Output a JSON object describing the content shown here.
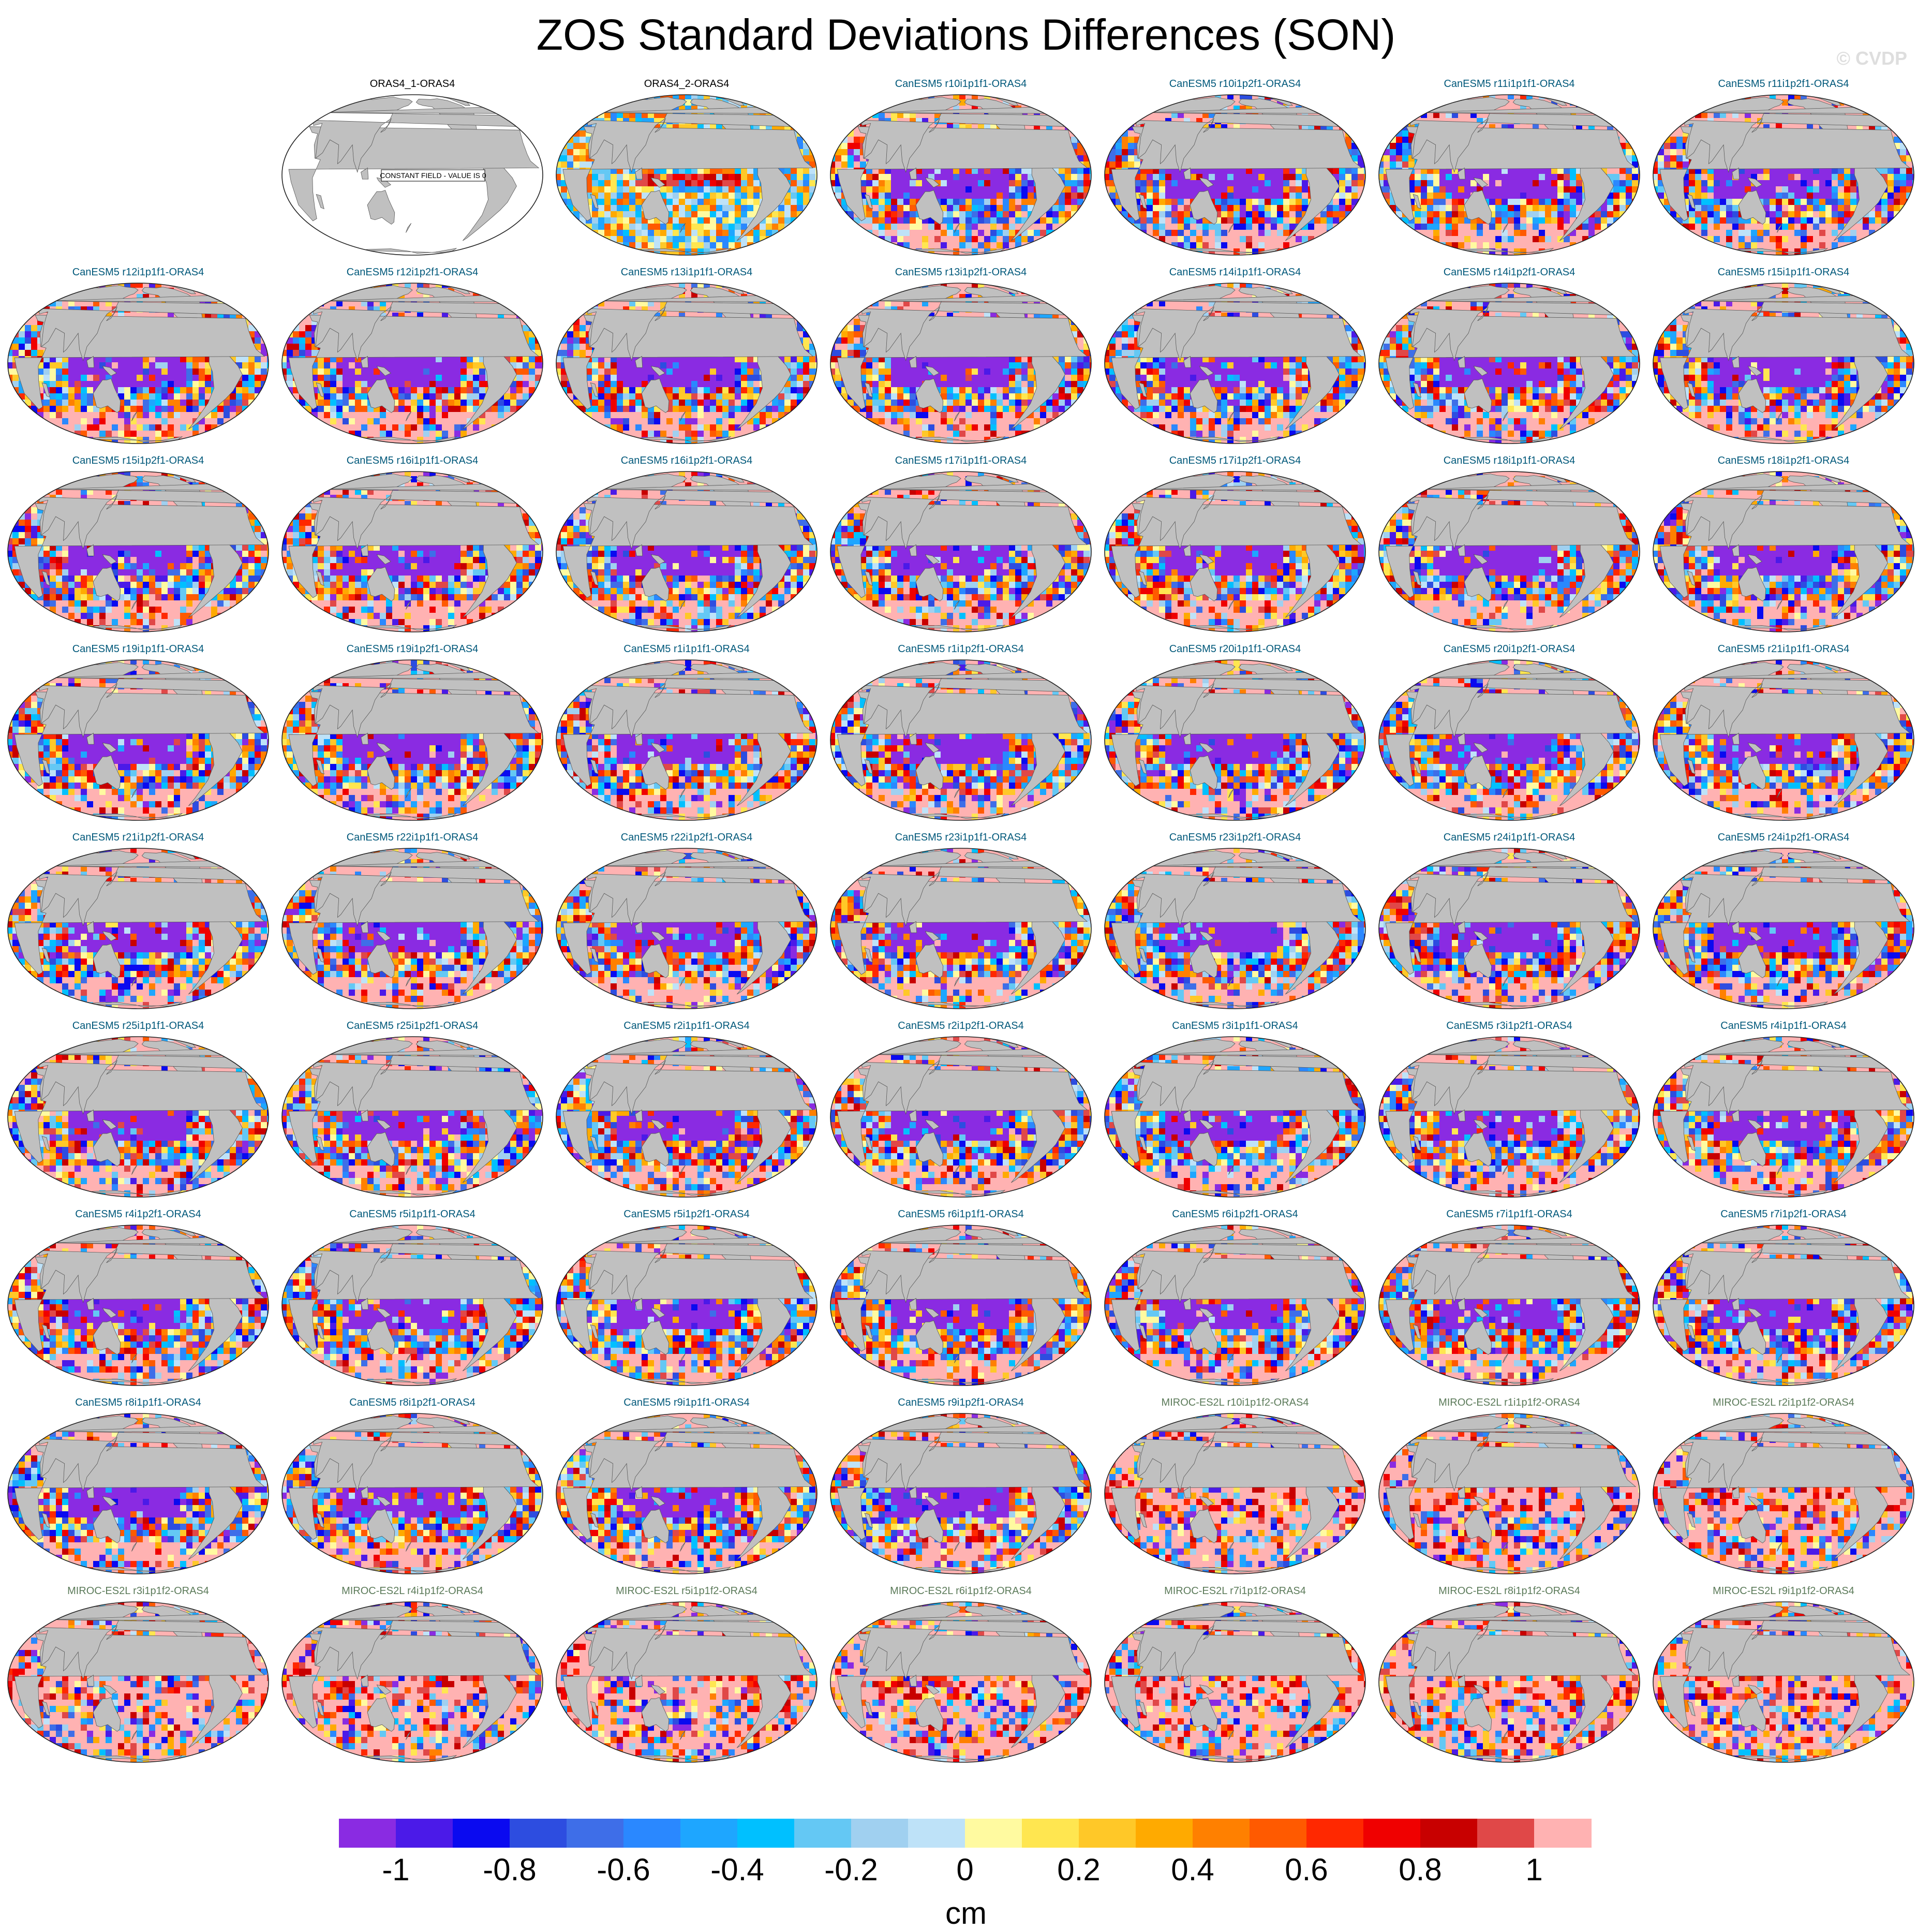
{
  "title": "ZOS Standard Deviations Differences (SON)",
  "watermark": "© CVDP",
  "colors": {
    "land": "#c0c0c0",
    "ocean_panel_one": "#ffffff",
    "colorbar": [
      "#8a2be2",
      "#4b1ae8",
      "#0a0af0",
      "#2d4de0",
      "#3e6ee8",
      "#2a88ff",
      "#1ea6ff",
      "#00c0ff",
      "#64c8f4",
      "#a0d0f0",
      "#bee2f8",
      "#fffaa0",
      "#ffe650",
      "#ffc828",
      "#ffaa00",
      "#ff8000",
      "#ff5a00",
      "#ff2800",
      "#f00000",
      "#c80000",
      "#e04848",
      "#ffb2b2"
    ]
  },
  "panels": [
    {
      "title": "ORAS4_1-ORAS4",
      "group": "obs",
      "annotation": "CONSTANT FIELD - VALUE IS 0"
    },
    {
      "title": "ORAS4_2-ORAS4",
      "group": "obs"
    },
    {
      "title": "CanESM5 r10i1p1f1-ORAS4",
      "group": "canesm"
    },
    {
      "title": "CanESM5 r10i1p2f1-ORAS4",
      "group": "canesm"
    },
    {
      "title": "CanESM5 r11i1p1f1-ORAS4",
      "group": "canesm"
    },
    {
      "title": "CanESM5 r11i1p2f1-ORAS4",
      "group": "canesm"
    },
    {
      "title": "CanESM5 r12i1p1f1-ORAS4",
      "group": "canesm"
    },
    {
      "title": "CanESM5 r12i1p2f1-ORAS4",
      "group": "canesm"
    },
    {
      "title": "CanESM5 r13i1p1f1-ORAS4",
      "group": "canesm"
    },
    {
      "title": "CanESM5 r13i1p2f1-ORAS4",
      "group": "canesm"
    },
    {
      "title": "CanESM5 r14i1p1f1-ORAS4",
      "group": "canesm"
    },
    {
      "title": "CanESM5 r14i1p2f1-ORAS4",
      "group": "canesm"
    },
    {
      "title": "CanESM5 r15i1p1f1-ORAS4",
      "group": "canesm"
    },
    {
      "title": "CanESM5 r15i1p2f1-ORAS4",
      "group": "canesm"
    },
    {
      "title": "CanESM5 r16i1p1f1-ORAS4",
      "group": "canesm"
    },
    {
      "title": "CanESM5 r16i1p2f1-ORAS4",
      "group": "canesm"
    },
    {
      "title": "CanESM5 r17i1p1f1-ORAS4",
      "group": "canesm"
    },
    {
      "title": "CanESM5 r17i1p2f1-ORAS4",
      "group": "canesm"
    },
    {
      "title": "CanESM5 r18i1p1f1-ORAS4",
      "group": "canesm"
    },
    {
      "title": "CanESM5 r18i1p2f1-ORAS4",
      "group": "canesm"
    },
    {
      "title": "CanESM5 r19i1p1f1-ORAS4",
      "group": "canesm"
    },
    {
      "title": "CanESM5 r19i1p2f1-ORAS4",
      "group": "canesm"
    },
    {
      "title": "CanESM5 r1i1p1f1-ORAS4",
      "group": "canesm"
    },
    {
      "title": "CanESM5 r1i1p2f1-ORAS4",
      "group": "canesm"
    },
    {
      "title": "CanESM5 r20i1p1f1-ORAS4",
      "group": "canesm"
    },
    {
      "title": "CanESM5 r20i1p2f1-ORAS4",
      "group": "canesm"
    },
    {
      "title": "CanESM5 r21i1p1f1-ORAS4",
      "group": "canesm"
    },
    {
      "title": "CanESM5 r21i1p2f1-ORAS4",
      "group": "canesm"
    },
    {
      "title": "CanESM5 r22i1p1f1-ORAS4",
      "group": "canesm"
    },
    {
      "title": "CanESM5 r22i1p2f1-ORAS4",
      "group": "canesm"
    },
    {
      "title": "CanESM5 r23i1p1f1-ORAS4",
      "group": "canesm"
    },
    {
      "title": "CanESM5 r23i1p2f1-ORAS4",
      "group": "canesm"
    },
    {
      "title": "CanESM5 r24i1p1f1-ORAS4",
      "group": "canesm"
    },
    {
      "title": "CanESM5 r24i1p2f1-ORAS4",
      "group": "canesm"
    },
    {
      "title": "CanESM5 r25i1p1f1-ORAS4",
      "group": "canesm"
    },
    {
      "title": "CanESM5 r25i1p2f1-ORAS4",
      "group": "canesm"
    },
    {
      "title": "CanESM5 r2i1p1f1-ORAS4",
      "group": "canesm"
    },
    {
      "title": "CanESM5 r2i1p2f1-ORAS4",
      "group": "canesm"
    },
    {
      "title": "CanESM5 r3i1p1f1-ORAS4",
      "group": "canesm"
    },
    {
      "title": "CanESM5 r3i1p2f1-ORAS4",
      "group": "canesm"
    },
    {
      "title": "CanESM5 r4i1p1f1-ORAS4",
      "group": "canesm"
    },
    {
      "title": "CanESM5 r4i1p2f1-ORAS4",
      "group": "canesm"
    },
    {
      "title": "CanESM5 r5i1p1f1-ORAS4",
      "group": "canesm"
    },
    {
      "title": "CanESM5 r5i1p2f1-ORAS4",
      "group": "canesm"
    },
    {
      "title": "CanESM5 r6i1p1f1-ORAS4",
      "group": "canesm"
    },
    {
      "title": "CanESM5 r6i1p2f1-ORAS4",
      "group": "canesm"
    },
    {
      "title": "CanESM5 r7i1p1f1-ORAS4",
      "group": "canesm"
    },
    {
      "title": "CanESM5 r7i1p2f1-ORAS4",
      "group": "canesm"
    },
    {
      "title": "CanESM5 r8i1p1f1-ORAS4",
      "group": "canesm"
    },
    {
      "title": "CanESM5 r8i1p2f1-ORAS4",
      "group": "canesm"
    },
    {
      "title": "CanESM5 r9i1p1f1-ORAS4",
      "group": "canesm"
    },
    {
      "title": "CanESM5 r9i1p2f1-ORAS4",
      "group": "canesm"
    },
    {
      "title": "MIROC-ES2L r10i1p1f2-ORAS4",
      "group": "miroc"
    },
    {
      "title": "MIROC-ES2L r1i1p1f2-ORAS4",
      "group": "miroc"
    },
    {
      "title": "MIROC-ES2L r2i1p1f2-ORAS4",
      "group": "miroc"
    },
    {
      "title": "MIROC-ES2L r3i1p1f2-ORAS4",
      "group": "miroc"
    },
    {
      "title": "MIROC-ES2L r4i1p1f2-ORAS4",
      "group": "miroc"
    },
    {
      "title": "MIROC-ES2L r5i1p1f2-ORAS4",
      "group": "miroc"
    },
    {
      "title": "MIROC-ES2L r6i1p1f2-ORAS4",
      "group": "miroc"
    },
    {
      "title": "MIROC-ES2L r7i1p1f2-ORAS4",
      "group": "miroc"
    },
    {
      "title": "MIROC-ES2L r8i1p1f2-ORAS4",
      "group": "miroc"
    },
    {
      "title": "MIROC-ES2L r9i1p1f2-ORAS4",
      "group": "miroc"
    }
  ],
  "colorbar": {
    "labels": [
      "-1",
      "-0.8",
      "-0.6",
      "-0.4",
      "-0.2",
      "0",
      "0.2",
      "0.4",
      "0.6",
      "0.8",
      "1"
    ],
    "units": "cm"
  }
}
